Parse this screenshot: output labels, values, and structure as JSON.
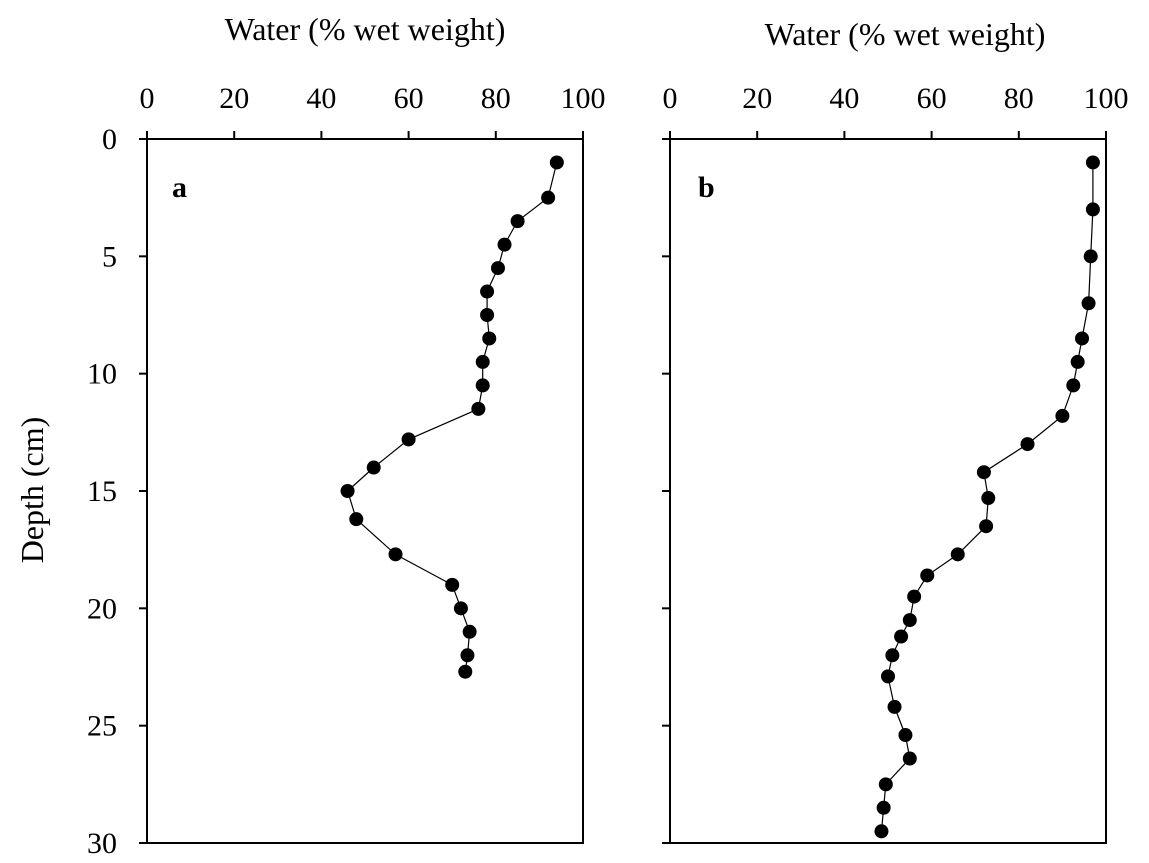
{
  "chart_data": [
    {
      "type": "line",
      "panel_label": "a",
      "xlabel": "Water (% wet weight)",
      "ylabel": "Depth (cm)",
      "xlim": [
        0,
        100
      ],
      "ylim": [
        0,
        30
      ],
      "y_inverted": true,
      "x_axis_position": "top",
      "xticks": [
        "0",
        "20",
        "40",
        "60",
        "80",
        "100"
      ],
      "yticks": [
        "0",
        "5",
        "10",
        "15",
        "20",
        "25",
        "30"
      ],
      "grid": false,
      "marker": "filled-circle",
      "series": [
        {
          "x": [
            94,
            92,
            85,
            82,
            80.5,
            78,
            78,
            78.5,
            77,
            77,
            76,
            60,
            52,
            46,
            48,
            57,
            70,
            72,
            74,
            73.5,
            73
          ],
          "y": [
            1,
            2.5,
            3.5,
            4.5,
            5.5,
            6.5,
            7.5,
            8.5,
            9.5,
            10.5,
            11.5,
            12.8,
            14,
            15,
            16.2,
            17.7,
            19,
            20,
            21,
            22,
            22.7
          ]
        }
      ]
    },
    {
      "type": "line",
      "panel_label": "b",
      "xlabel": "Water (% wet weight)",
      "ylabel": "",
      "xlim": [
        0,
        100
      ],
      "ylim": [
        0,
        30
      ],
      "y_inverted": true,
      "x_axis_position": "top",
      "xticks": [
        "0",
        "20",
        "40",
        "60",
        "80",
        "100"
      ],
      "yticks": [],
      "grid": false,
      "marker": "filled-circle",
      "series": [
        {
          "x": [
            97,
            97,
            96.5,
            96,
            94.5,
            93.5,
            92.5,
            90,
            82,
            72,
            73,
            72.5,
            66,
            59,
            56,
            55,
            53,
            51,
            50,
            51.5,
            54,
            55,
            49.5,
            49,
            48.5
          ],
          "y": [
            1,
            3,
            5,
            7,
            8.5,
            9.5,
            10.5,
            11.8,
            13,
            14.2,
            15.3,
            16.5,
            17.7,
            18.6,
            19.5,
            20.5,
            21.2,
            22,
            22.9,
            24.2,
            25.4,
            26.4,
            27.5,
            28.5,
            29.5
          ]
        }
      ]
    }
  ]
}
